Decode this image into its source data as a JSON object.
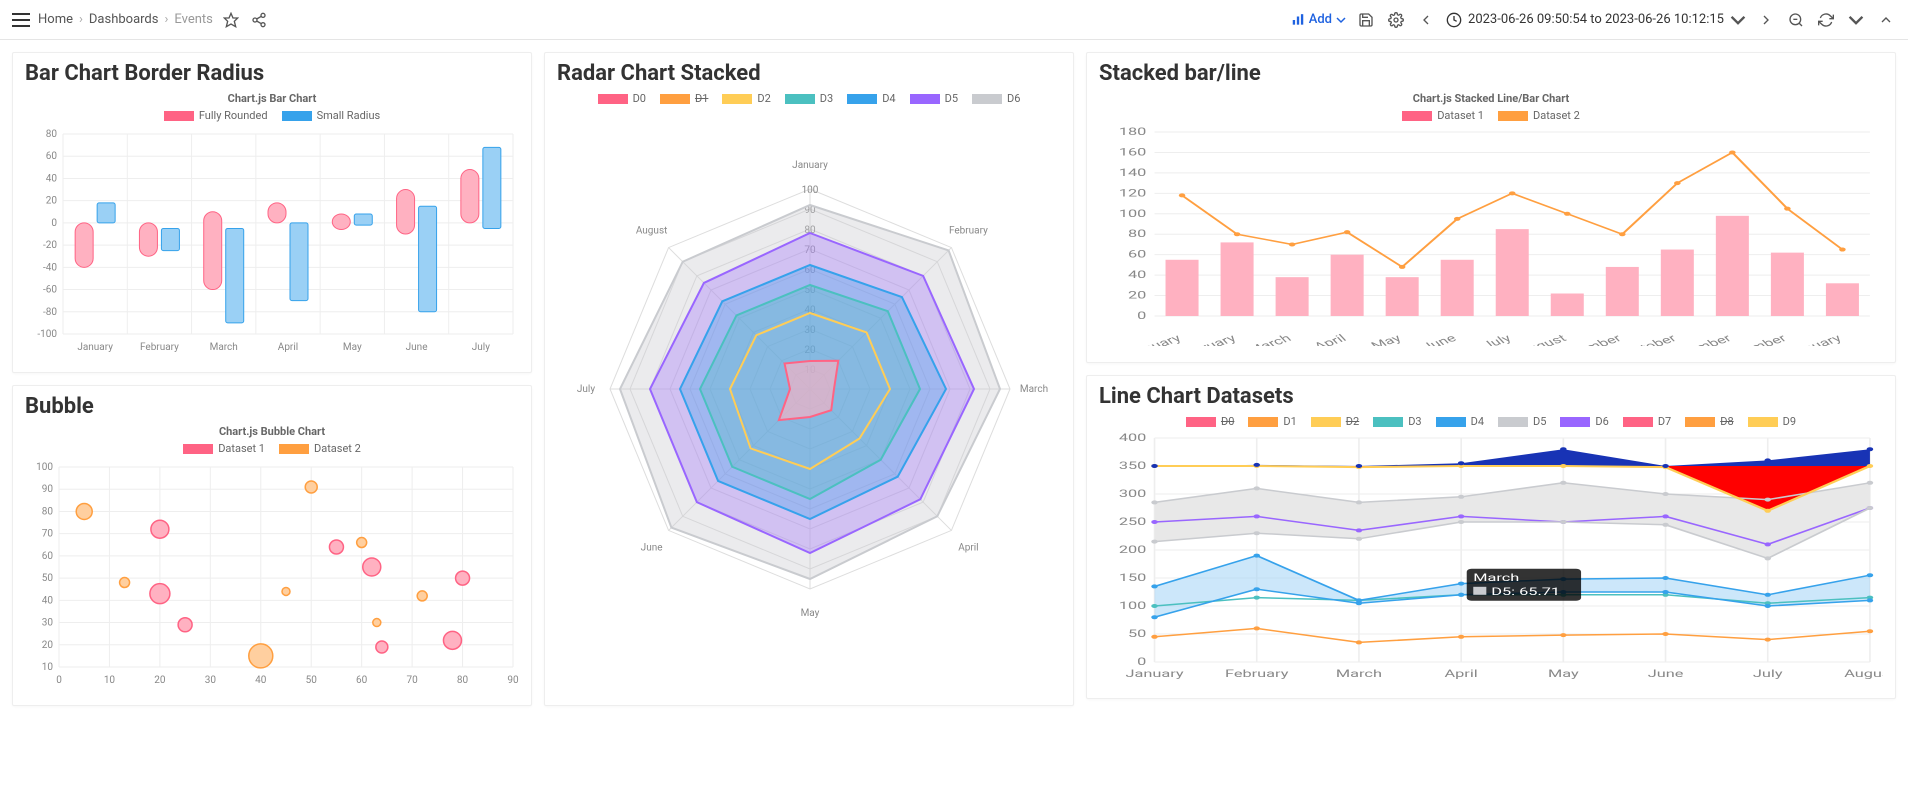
{
  "topbar": {
    "breadcrumb": [
      "Home",
      "Dashboards",
      "Events"
    ],
    "add_label": "Add",
    "timerange": "2023-06-26 09:50:54 to 2023-06-26 10:12:15"
  },
  "panels": {
    "bar_radius": {
      "title": "Bar Chart Border Radius",
      "chart_title": "Chart.js Bar Chart",
      "legend": [
        {
          "label": "Fully Rounded",
          "color": "#ff6384"
        },
        {
          "label": "Small Radius",
          "color": "#36a2eb"
        }
      ],
      "categories": [
        "January",
        "February",
        "March",
        "April",
        "May",
        "June",
        "July"
      ],
      "ylim": [
        -100,
        80
      ],
      "ytick_step": 20,
      "series": [
        {
          "color": "#ffb1c1",
          "border": "#ff6384",
          "rounded": true,
          "data": [
            [
              -40,
              0
            ],
            [
              -30,
              0
            ],
            [
              -60,
              10
            ],
            [
              0,
              18
            ],
            [
              -6,
              8
            ],
            [
              -10,
              30
            ],
            [
              0,
              48
            ]
          ]
        },
        {
          "color": "#9ad0f5",
          "border": "#36a2eb",
          "rounded": false,
          "data": [
            [
              0,
              18
            ],
            [
              -25,
              -5
            ],
            [
              -90,
              -5
            ],
            [
              -70,
              0
            ],
            [
              -2,
              8
            ],
            [
              -80,
              15
            ],
            [
              -5,
              68
            ]
          ]
        }
      ]
    },
    "bubble": {
      "title": "Bubble",
      "chart_title": "Chart.js Bubble Chart",
      "legend": [
        {
          "label": "Dataset 1",
          "color": "#ff6384"
        },
        {
          "label": "Dataset 2",
          "color": "#ff9f40"
        }
      ],
      "xlim": [
        0,
        90
      ],
      "xtick_step": 10,
      "ylim": [
        10,
        100
      ],
      "ytick_step": 10,
      "series": [
        {
          "color": "#ffb1c1",
          "border": "#ff6384",
          "points": [
            [
              20,
              43,
              10
            ],
            [
              20,
              72,
              9
            ],
            [
              25,
              29,
              7
            ],
            [
              55,
              64,
              7
            ],
            [
              62,
              55,
              9
            ],
            [
              78,
              22,
              9
            ],
            [
              80,
              50,
              7
            ],
            [
              64,
              19,
              6
            ]
          ]
        },
        {
          "color": "#ffcf9f",
          "border": "#ff9f40",
          "points": [
            [
              5,
              80,
              8
            ],
            [
              13,
              48,
              5
            ],
            [
              45,
              44,
              4
            ],
            [
              50,
              91,
              6
            ],
            [
              60,
              66,
              5
            ],
            [
              72,
              42,
              5
            ],
            [
              40,
              15,
              12
            ],
            [
              63,
              30,
              4
            ]
          ]
        }
      ]
    },
    "radar": {
      "title": "Radar Chart Stacked",
      "axes": [
        "January",
        "February",
        "March",
        "April",
        "May",
        "June",
        "July",
        "August"
      ],
      "scale_max": 100,
      "scale_step": 10,
      "legend": [
        {
          "label": "D0",
          "color": "#ff6384",
          "fill": "#ffb1c180"
        },
        {
          "label": "D1",
          "color": "#ff9f40",
          "fill": "none",
          "strike": true
        },
        {
          "label": "D2",
          "color": "#ffcd56",
          "fill": "none"
        },
        {
          "label": "D3",
          "color": "#4bc0c0",
          "fill": "#4bc0c050"
        },
        {
          "label": "D4",
          "color": "#36a2eb",
          "fill": "#36a2eb50"
        },
        {
          "label": "D5",
          "color": "#9966ff",
          "fill": "#9966ff50"
        },
        {
          "label": "D6",
          "color": "#c9cbcf",
          "fill": "#c9cbcf60"
        }
      ],
      "series": [
        {
          "color": "#c9cbcf",
          "fill": "#c9cbcf60",
          "data": [
            92,
            98,
            95,
            90,
            95,
            98,
            95,
            90
          ]
        },
        {
          "color": "#9966ff",
          "fill": "#9966ff50",
          "data": [
            78,
            80,
            82,
            78,
            82,
            80,
            80,
            75
          ]
        },
        {
          "color": "#36a2eb",
          "fill": "#36a2eb50",
          "data": [
            62,
            65,
            68,
            62,
            65,
            65,
            65,
            62
          ]
        },
        {
          "color": "#4bc0c0",
          "fill": "#4bc0c050",
          "data": [
            52,
            55,
            55,
            50,
            55,
            55,
            55,
            52
          ]
        },
        {
          "color": "#ffcd56",
          "fill": "none",
          "data": [
            38,
            40,
            40,
            35,
            40,
            42,
            40,
            38
          ]
        },
        {
          "color": "#ff6384",
          "fill": "#ffb1c1a0",
          "data": [
            14,
            20,
            12,
            15,
            14,
            22,
            10,
            18
          ]
        }
      ]
    },
    "stacked_barline": {
      "title": "Stacked bar/line",
      "chart_title": "Chart.js Stacked Line/Bar Chart",
      "legend": [
        {
          "label": "Dataset 1",
          "color": "#ff6384",
          "type": "bar"
        },
        {
          "label": "Dataset 2",
          "color": "#ff9f40",
          "type": "line"
        }
      ],
      "categories": [
        "January",
        "February",
        "March",
        "April",
        "May",
        "June",
        "July",
        "August",
        "September",
        "October",
        "November",
        "December",
        "January"
      ],
      "ylim": [
        0,
        180
      ],
      "ytick_step": 20,
      "bars": {
        "color": "#ffb1c1",
        "data": [
          55,
          72,
          38,
          60,
          38,
          55,
          85,
          22,
          48,
          65,
          98,
          62,
          32
        ]
      },
      "line": {
        "color": "#ff9f40",
        "data": [
          118,
          80,
          70,
          82,
          48,
          95,
          120,
          100,
          80,
          130,
          160,
          105,
          65
        ]
      }
    },
    "line_datasets": {
      "title": "Line Chart Datasets",
      "legend": [
        {
          "label": "D0",
          "color": "#ff6384",
          "strike": true
        },
        {
          "label": "D1",
          "color": "#ff9f40"
        },
        {
          "label": "D2",
          "color": "#ffcd56",
          "strike": true
        },
        {
          "label": "D3",
          "color": "#4bc0c0"
        },
        {
          "label": "D4",
          "color": "#36a2eb"
        },
        {
          "label": "D5",
          "color": "#c9cbcf"
        },
        {
          "label": "D6",
          "color": "#9966ff"
        },
        {
          "label": "D7",
          "color": "#ff6384"
        },
        {
          "label": "D8",
          "color": "#ff9f40",
          "strike": true
        },
        {
          "label": "D9",
          "color": "#ffcd56"
        }
      ],
      "categories": [
        "January",
        "February",
        "March",
        "April",
        "May",
        "June",
        "July",
        "August"
      ],
      "ylim": [
        0,
        400
      ],
      "ytick_step": 50,
      "top_blue": {
        "color": "#1833b5",
        "fill": "#1833b5",
        "data": [
          350,
          352,
          350,
          355,
          380,
          350,
          360,
          380
        ]
      },
      "top_red": {
        "color": "#ff0000",
        "fill": "#ff0000",
        "data": [
          350,
          350,
          348,
          350,
          350,
          348,
          270,
          350
        ]
      },
      "yellow_outline": {
        "color": "#ffcd56",
        "data": [
          350,
          350,
          348,
          350,
          350,
          348,
          270,
          350
        ]
      },
      "gray_top": {
        "color": "#c9cbcf",
        "data": [
          285,
          310,
          285,
          295,
          320,
          300,
          290,
          320
        ]
      },
      "gray_bottom": {
        "color": "#c9cbcf",
        "fill": "#e8e8e8",
        "data": [
          215,
          230,
          220,
          250,
          250,
          245,
          185,
          275
        ]
      },
      "purple": {
        "color": "#9966ff",
        "data": [
          250,
          260,
          235,
          260,
          250,
          260,
          210,
          275
        ]
      },
      "blue_top": {
        "color": "#36a2eb",
        "data": [
          135,
          190,
          110,
          140,
          148,
          150,
          120,
          155
        ]
      },
      "blue_bottom": {
        "color": "#36a2eb",
        "fill": "#9ad0f580",
        "data": [
          80,
          130,
          105,
          120,
          125,
          125,
          100,
          110
        ]
      },
      "teal": {
        "color": "#4bc0c0",
        "data": [
          100,
          115,
          110,
          120,
          120,
          120,
          105,
          115
        ]
      },
      "orange": {
        "color": "#ff9f40",
        "data": [
          45,
          60,
          35,
          45,
          48,
          50,
          40,
          55
        ]
      },
      "tooltip": {
        "x_index": 2,
        "title": "March",
        "body": "D5: 65.71"
      }
    }
  },
  "colors": {
    "grid": "#eeeeee",
    "axis": "#cccccc",
    "text_muted": "#888888"
  }
}
